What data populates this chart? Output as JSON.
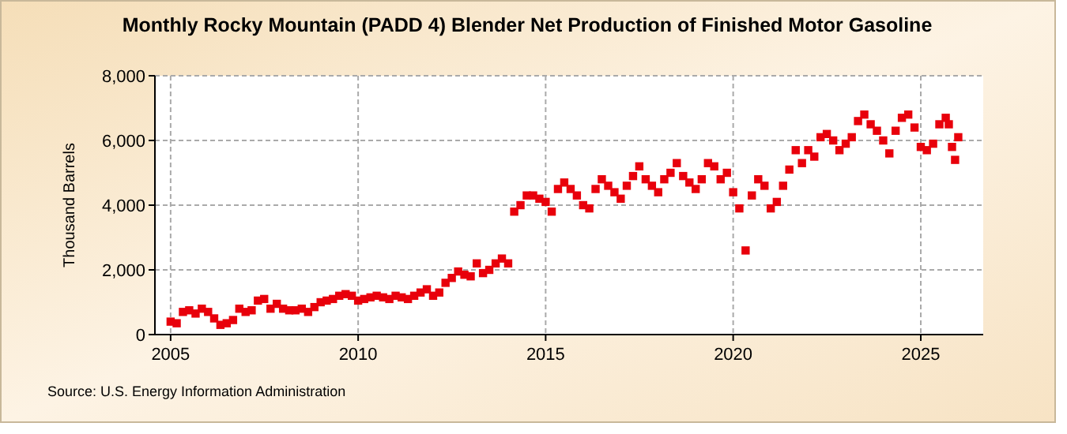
{
  "chart_data": {
    "type": "scatter",
    "title": "Monthly Rocky Mountain (PADD 4) Blender Net Production of Finished Motor Gasoline",
    "ylabel": "Thousand Barrels",
    "annotations": [
      "Source: U.S. Energy Information Administration"
    ],
    "x": [
      "2005-01",
      "2005-03",
      "2005-05",
      "2005-07",
      "2005-09",
      "2005-11",
      "2006-01",
      "2006-03",
      "2006-05",
      "2006-07",
      "2006-09",
      "2006-11",
      "2007-01",
      "2007-03",
      "2007-05",
      "2007-07",
      "2007-09",
      "2007-11",
      "2008-01",
      "2008-03",
      "2008-05",
      "2008-07",
      "2008-09",
      "2008-11",
      "2009-01",
      "2009-03",
      "2009-05",
      "2009-07",
      "2009-09",
      "2009-11",
      "2010-01",
      "2010-03",
      "2010-05",
      "2010-07",
      "2010-09",
      "2010-11",
      "2011-01",
      "2011-03",
      "2011-05",
      "2011-07",
      "2011-09",
      "2011-11",
      "2012-01",
      "2012-03",
      "2012-05",
      "2012-07",
      "2012-09",
      "2012-11",
      "2013-01",
      "2013-03",
      "2013-05",
      "2013-07",
      "2013-09",
      "2013-11",
      "2014-01",
      "2014-03",
      "2014-05",
      "2014-07",
      "2014-09",
      "2014-11",
      "2015-01",
      "2015-03",
      "2015-05",
      "2015-07",
      "2015-09",
      "2015-11",
      "2016-01",
      "2016-03",
      "2016-05",
      "2016-07",
      "2016-09",
      "2016-11",
      "2017-01",
      "2017-03",
      "2017-05",
      "2017-07",
      "2017-09",
      "2017-11",
      "2018-01",
      "2018-03",
      "2018-05",
      "2018-07",
      "2018-09",
      "2018-11",
      "2019-01",
      "2019-03",
      "2019-05",
      "2019-07",
      "2019-09",
      "2019-11",
      "2020-01",
      "2020-03",
      "2020-05",
      "2020-07",
      "2020-09",
      "2020-11",
      "2021-01",
      "2021-03",
      "2021-05",
      "2021-07",
      "2021-09",
      "2021-11",
      "2022-01",
      "2022-03",
      "2022-05",
      "2022-07",
      "2022-09",
      "2022-11",
      "2023-01",
      "2023-03",
      "2023-05",
      "2023-07",
      "2023-09",
      "2023-11",
      "2024-01",
      "2024-03",
      "2024-05",
      "2024-07",
      "2024-09",
      "2024-11",
      "2025-01",
      "2025-03",
      "2025-05",
      "2025-07",
      "2025-09",
      "2025-10",
      "2025-11",
      "2025-12",
      "2026-01"
    ],
    "series": [
      {
        "color": "#e8000b",
        "values": [
          400,
          350,
          700,
          750,
          650,
          800,
          700,
          500,
          300,
          350,
          450,
          800,
          700,
          750,
          1050,
          1100,
          800,
          950,
          800,
          750,
          750,
          800,
          700,
          850,
          1000,
          1050,
          1100,
          1200,
          1250,
          1200,
          1050,
          1100,
          1150,
          1200,
          1150,
          1100,
          1200,
          1150,
          1100,
          1200,
          1300,
          1400,
          1200,
          1300,
          1600,
          1750,
          1950,
          1850,
          1800,
          2200,
          1900,
          2000,
          2200,
          2350,
          2200,
          3800,
          4000,
          4300,
          4300,
          4200,
          4100,
          3800,
          4500,
          4700,
          4500,
          4300,
          4000,
          3900,
          4500,
          4800,
          4600,
          4400,
          4200,
          4600,
          4900,
          5200,
          4800,
          4600,
          4400,
          4800,
          5000,
          5300,
          4900,
          4700,
          4500,
          4800,
          5300,
          5200,
          4800,
          5000,
          4400,
          3900,
          2600,
          4300,
          4800,
          4600,
          3900,
          4100,
          4600,
          5100,
          5700,
          5300,
          5700,
          5500,
          6100,
          6200,
          6000,
          5700,
          5900,
          6100,
          6600,
          6800,
          6500,
          6300,
          6000,
          5600,
          6300,
          6700,
          6800,
          6400,
          5800,
          5700,
          5900,
          6500,
          6700,
          6500,
          5800,
          5400,
          6100
        ]
      }
    ],
    "xlim": [
      "2004-08",
      "2026-09"
    ],
    "xticks": [
      {
        "value": "2005",
        "label": "2005"
      },
      {
        "value": "2010",
        "label": "2010"
      },
      {
        "value": "2015",
        "label": "2015"
      },
      {
        "value": "2020",
        "label": "2020"
      },
      {
        "value": "2025",
        "label": "2025"
      }
    ],
    "ylim": [
      0,
      8000
    ],
    "yticks": [
      {
        "value": 0,
        "label": "0"
      },
      {
        "value": 2000,
        "label": "2,000"
      },
      {
        "value": 4000,
        "label": "4,000"
      },
      {
        "value": 6000,
        "label": "6,000"
      },
      {
        "value": 8000,
        "label": "8,000"
      }
    ],
    "grid": true,
    "marker": "square"
  }
}
